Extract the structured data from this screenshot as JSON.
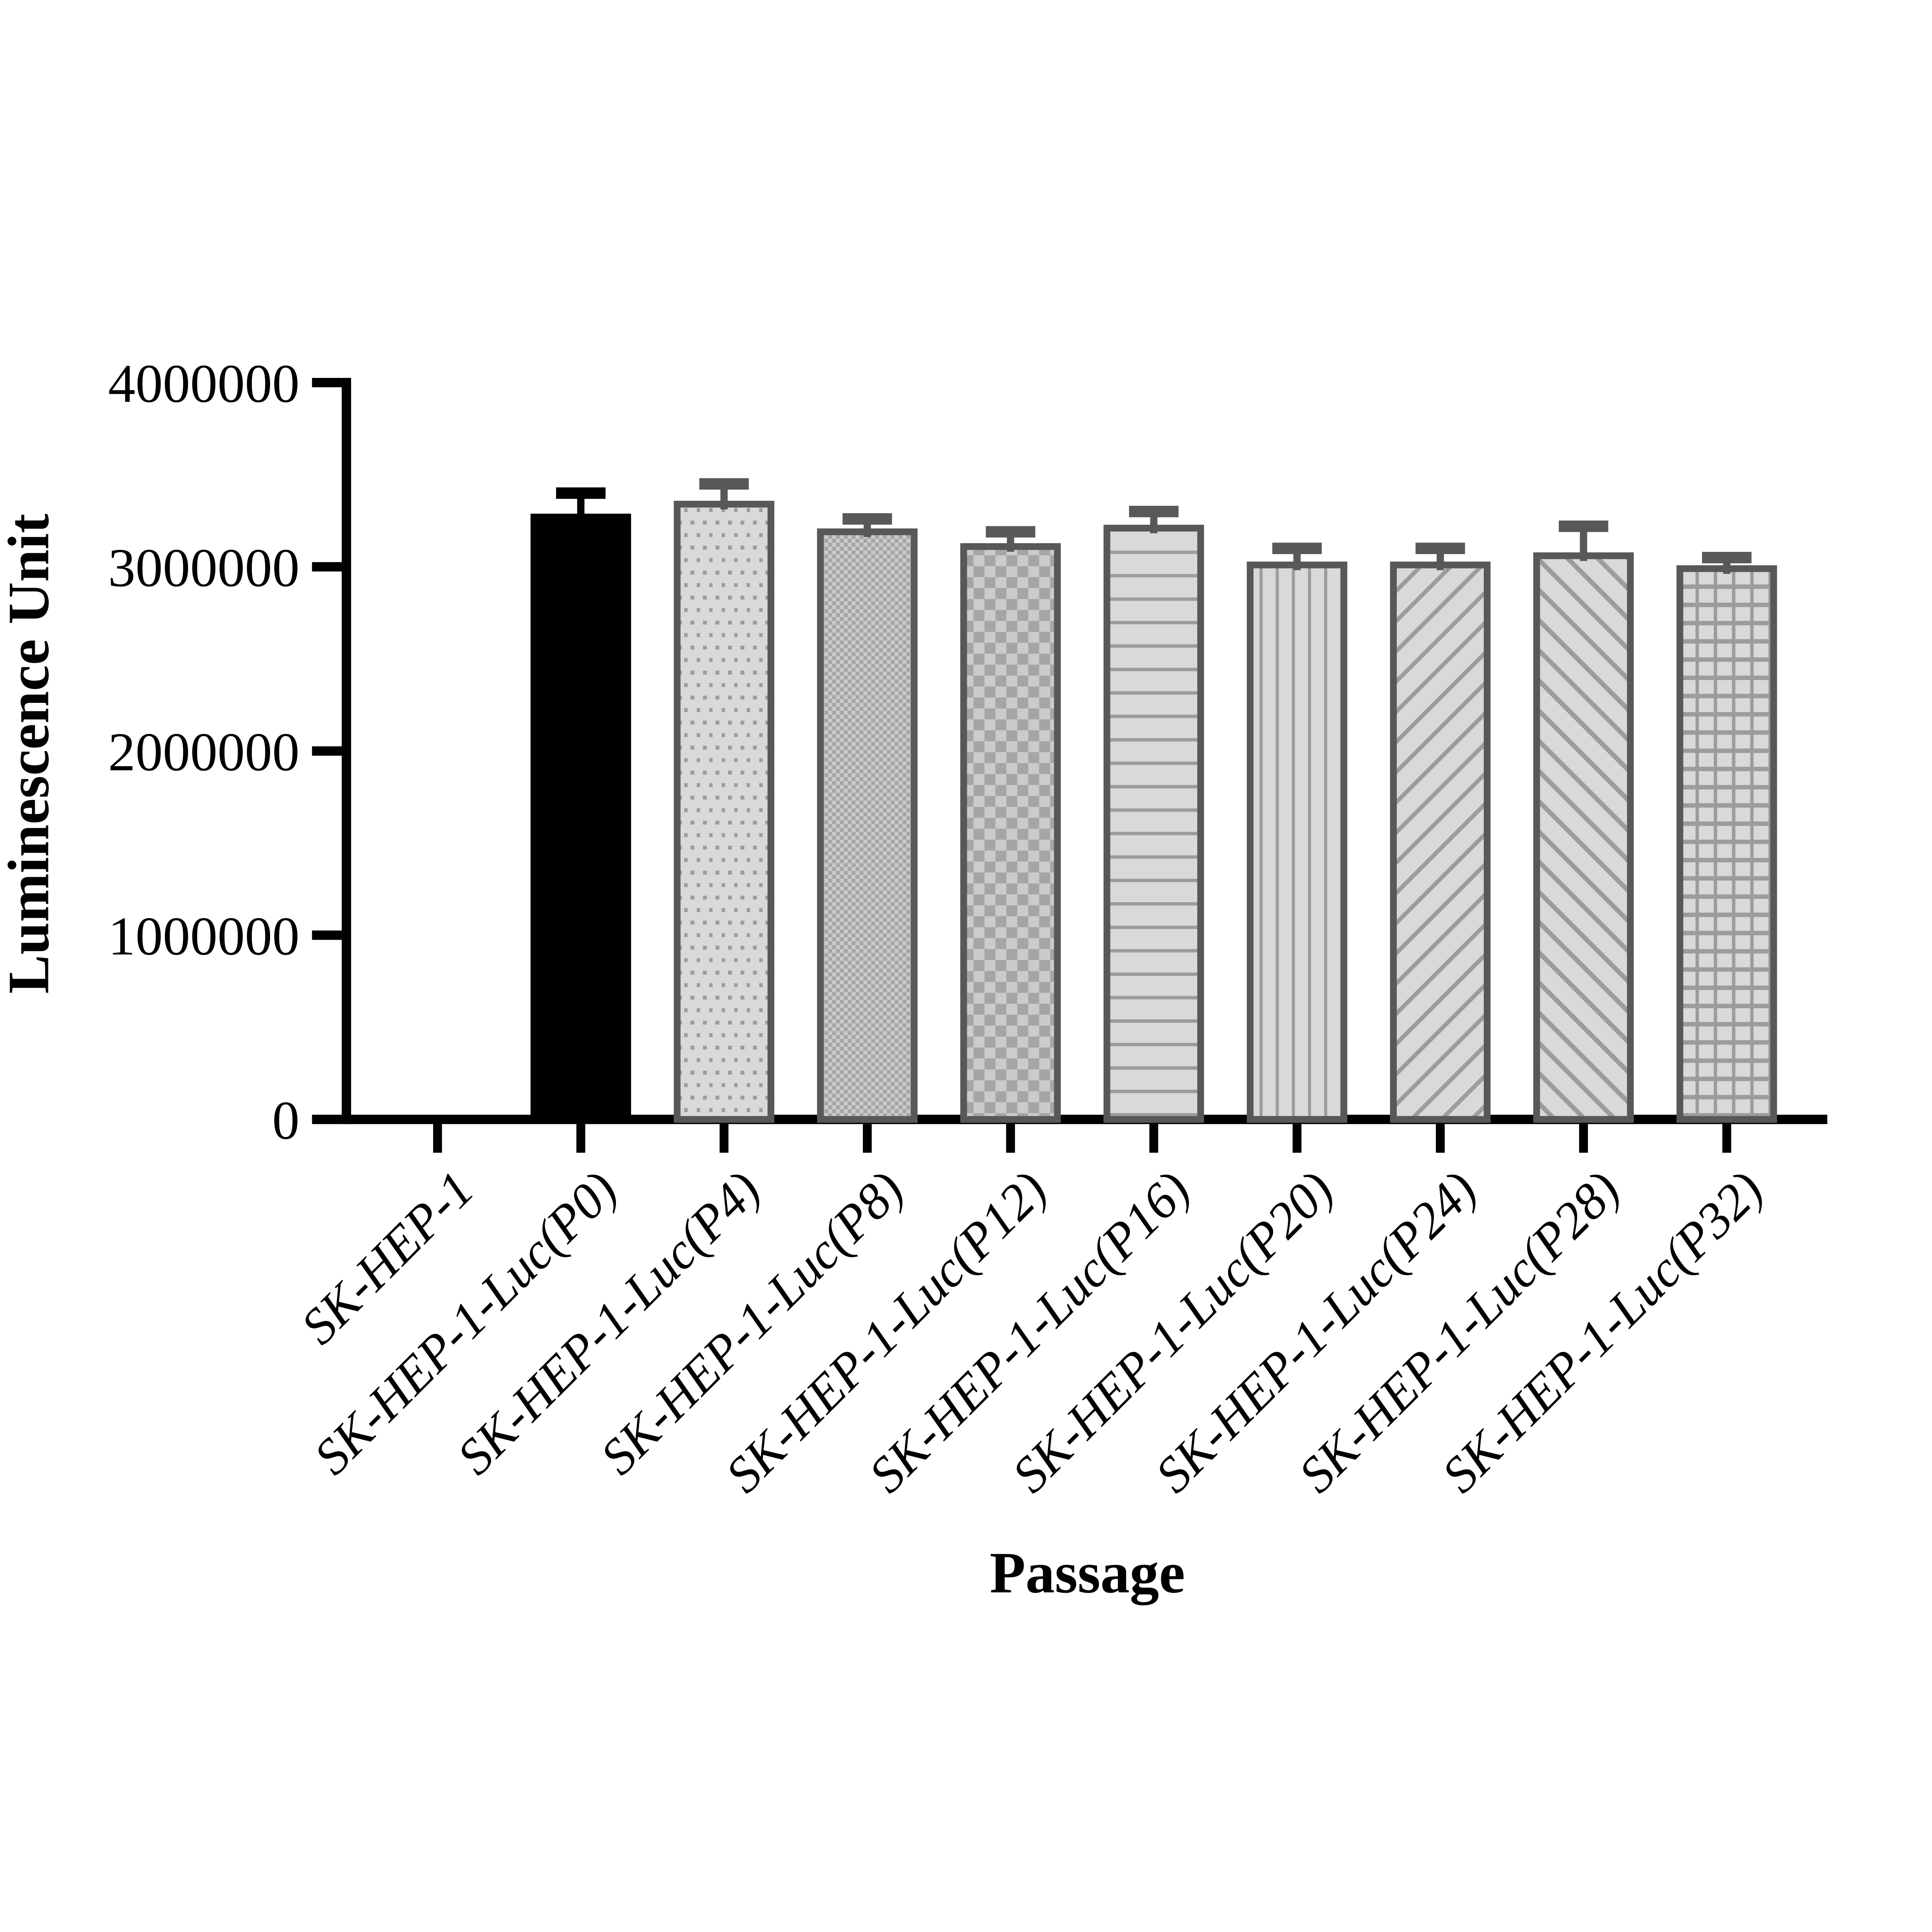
{
  "chart_data": {
    "type": "bar",
    "title": "",
    "xlabel": "Passage",
    "ylabel": "Luminescence Unit",
    "ylim": [
      0,
      4000000
    ],
    "ytick_interval": 1000000,
    "ytick_labels": [
      "0",
      "1000000",
      "2000000",
      "3000000",
      "4000000"
    ],
    "grid": "off",
    "legend": "none",
    "error_bars": "upper SD whiskers with caps",
    "categories": [
      "SK-HEP-1",
      "SK-HEP-1-Luc(P0)",
      "SK-HEP-1-Luc(P4)",
      "SK-HEP-1-Luc(P8)",
      "SK-HEP-1-Luc(P12)",
      "SK-HEP-1-Luc(P16)",
      "SK-HEP-1-Luc(P20)",
      "SK-HEP-1-Luc(P24)",
      "SK-HEP-1-Luc(P28)",
      "SK-HEP-1-Luc(P32)"
    ],
    "values": [
      0,
      3270000,
      3340000,
      3190000,
      3110000,
      3210000,
      3010000,
      3010000,
      3060000,
      2990000
    ],
    "errors": [
      0,
      130000,
      110000,
      70000,
      80000,
      90000,
      90000,
      90000,
      160000,
      60000
    ],
    "bar_patterns": [
      "none",
      "solid-black",
      "dots",
      "checker-fine",
      "checker-coarse",
      "hlines",
      "vlines",
      "diag-up",
      "diag-down",
      "grid"
    ],
    "colors": {
      "black_bar": "#000000",
      "bar_border": "#58585a",
      "bar_fill": "#d9d9d9",
      "pattern_gray": "#9c9c9e",
      "checker_light": "#cbcbcd",
      "checker_dark": "#a5a5a7",
      "axis": "#000000",
      "background": "#ffffff"
    }
  }
}
